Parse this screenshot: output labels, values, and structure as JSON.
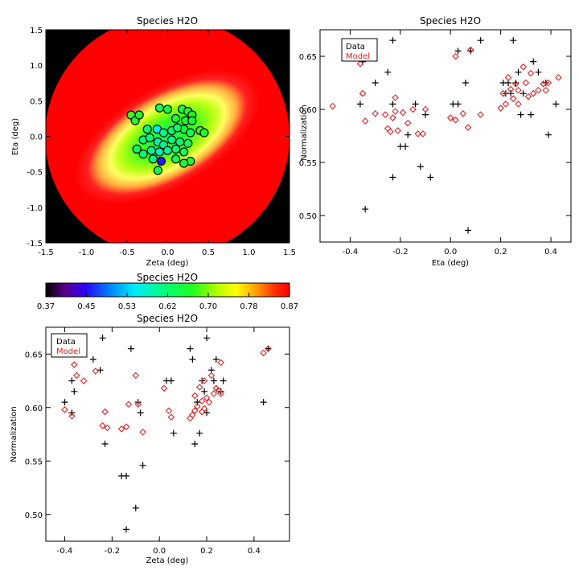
{
  "colors": {
    "data_marker": "#000000",
    "model_marker": "#dd2222",
    "background_outside_map": "#000000"
  },
  "chart_data": [
    {
      "type": "heatmap",
      "title": "Species H2O",
      "xlabel": "Zeta (deg)",
      "ylabel": "Eta (deg)",
      "xlim": [
        -1.5,
        1.5
      ],
      "ylim": [
        -1.5,
        1.5
      ],
      "xticks": [
        "-1.5",
        "-1.0",
        "-0.5",
        "0.0",
        "0.5",
        "1.0",
        "1.5"
      ],
      "yticks": [
        "-1.5",
        "-1.0",
        "-0.5",
        "0.0",
        "0.5",
        "1.0",
        "1.5"
      ],
      "map_value_range": [
        0.37,
        0.87
      ],
      "points": [
        {
          "zeta": -0.45,
          "eta": 0.3,
          "value": 0.68
        },
        {
          "zeta": -0.4,
          "eta": 0.22,
          "value": 0.66
        },
        {
          "zeta": -0.35,
          "eta": 0.3,
          "value": 0.67
        },
        {
          "zeta": -0.25,
          "eta": 0.1,
          "value": 0.62
        },
        {
          "zeta": -0.1,
          "eta": 0.4,
          "value": 0.64
        },
        {
          "zeta": 0.0,
          "eta": 0.38,
          "value": 0.65
        },
        {
          "zeta": 0.1,
          "eta": 0.25,
          "value": 0.66
        },
        {
          "zeta": 0.18,
          "eta": 0.38,
          "value": 0.65
        },
        {
          "zeta": 0.25,
          "eta": 0.35,
          "value": 0.66
        },
        {
          "zeta": 0.3,
          "eta": 0.3,
          "value": 0.67
        },
        {
          "zeta": 0.22,
          "eta": 0.22,
          "value": 0.66
        },
        {
          "zeta": 0.3,
          "eta": 0.22,
          "value": 0.66
        },
        {
          "zeta": 0.2,
          "eta": 0.1,
          "value": 0.65
        },
        {
          "zeta": 0.28,
          "eta": 0.05,
          "value": 0.64
        },
        {
          "zeta": -0.13,
          "eta": 0.1,
          "value": 0.55
        },
        {
          "zeta": -0.05,
          "eta": 0.05,
          "value": 0.61
        },
        {
          "zeta": 0.05,
          "eta": 0.08,
          "value": 0.62
        },
        {
          "zeta": 0.12,
          "eta": 0.12,
          "value": 0.63
        },
        {
          "zeta": 0.4,
          "eta": 0.08,
          "value": 0.68
        },
        {
          "zeta": 0.45,
          "eta": 0.05,
          "value": 0.67
        },
        {
          "zeta": -0.3,
          "eta": -0.05,
          "value": 0.62
        },
        {
          "zeta": -0.22,
          "eta": -0.02,
          "value": 0.61
        },
        {
          "zeta": -0.12,
          "eta": -0.08,
          "value": 0.59
        },
        {
          "zeta": -0.05,
          "eta": -0.12,
          "value": 0.6
        },
        {
          "zeta": 0.05,
          "eta": -0.05,
          "value": 0.61
        },
        {
          "zeta": 0.15,
          "eta": -0.08,
          "value": 0.62
        },
        {
          "zeta": 0.25,
          "eta": -0.1,
          "value": 0.64
        },
        {
          "zeta": -0.38,
          "eta": -0.18,
          "value": 0.63
        },
        {
          "zeta": -0.3,
          "eta": -0.25,
          "value": 0.62
        },
        {
          "zeta": -0.2,
          "eta": -0.2,
          "value": 0.6
        },
        {
          "zeta": -0.1,
          "eta": -0.22,
          "value": 0.58
        },
        {
          "zeta": 0.0,
          "eta": -0.2,
          "value": 0.6
        },
        {
          "zeta": 0.1,
          "eta": -0.18,
          "value": 0.62
        },
        {
          "zeta": 0.2,
          "eta": -0.22,
          "value": 0.63
        },
        {
          "zeta": -0.18,
          "eta": -0.32,
          "value": 0.61
        },
        {
          "zeta": -0.08,
          "eta": -0.35,
          "value": 0.46
        },
        {
          "zeta": 0.1,
          "eta": -0.32,
          "value": 0.64
        },
        {
          "zeta": 0.28,
          "eta": -0.35,
          "value": 0.66
        },
        {
          "zeta": -0.12,
          "eta": -0.48,
          "value": 0.64
        },
        {
          "zeta": 0.2,
          "eta": -0.38,
          "value": 0.65
        }
      ]
    },
    {
      "type": "scatter",
      "title": "Species H2O",
      "xlabel": "Eta (deg)",
      "ylabel": "Normalization",
      "xlim": [
        -0.52,
        0.48
      ],
      "ylim": [
        0.475,
        0.675
      ],
      "xticks": [
        -0.4,
        -0.2,
        0.0,
        0.2,
        0.4
      ],
      "xtick_labels": [
        "-0.4",
        "-0.2",
        "0.0",
        "0.2",
        "0.4"
      ],
      "yticks": [
        0.5,
        0.55,
        0.6,
        0.65
      ],
      "ytick_labels": [
        "0.50",
        "0.55",
        "0.60",
        "0.65"
      ],
      "legend": {
        "entries": [
          "Data",
          "Model"
        ],
        "placement": "top-left"
      },
      "series": [
        {
          "name": "Data",
          "marker": "plus",
          "points": [
            [
              -0.35,
              0.645
            ],
            [
              -0.36,
              0.605
            ],
            [
              -0.34,
              0.506
            ],
            [
              -0.3,
              0.625
            ],
            [
              -0.25,
              0.635
            ],
            [
              -0.23,
              0.665
            ],
            [
              -0.23,
              0.605
            ],
            [
              -0.23,
              0.536
            ],
            [
              -0.2,
              0.565
            ],
            [
              -0.18,
              0.565
            ],
            [
              -0.17,
              0.576
            ],
            [
              -0.14,
              0.605
            ],
            [
              -0.12,
              0.546
            ],
            [
              -0.1,
              0.595
            ],
            [
              -0.08,
              0.536
            ],
            [
              0.01,
              0.605
            ],
            [
              0.03,
              0.605
            ],
            [
              0.03,
              0.655
            ],
            [
              0.06,
              0.625
            ],
            [
              0.07,
              0.486
            ],
            [
              0.08,
              0.655
            ],
            [
              0.12,
              0.665
            ],
            [
              0.21,
              0.625
            ],
            [
              0.22,
              0.615
            ],
            [
              0.23,
              0.625
            ],
            [
              0.24,
              0.615
            ],
            [
              0.25,
              0.665
            ],
            [
              0.26,
              0.625
            ],
            [
              0.27,
              0.635
            ],
            [
              0.28,
              0.595
            ],
            [
              0.29,
              0.615
            ],
            [
              0.32,
              0.595
            ],
            [
              0.33,
              0.645
            ],
            [
              0.35,
              0.635
            ],
            [
              0.38,
              0.625
            ],
            [
              0.39,
              0.576
            ],
            [
              0.42,
              0.605
            ]
          ]
        },
        {
          "name": "Model",
          "marker": "diamond",
          "points": [
            [
              -0.47,
              0.603
            ],
            [
              -0.36,
              0.643
            ],
            [
              -0.35,
              0.615
            ],
            [
              -0.34,
              0.589
            ],
            [
              -0.3,
              0.596
            ],
            [
              -0.26,
              0.595
            ],
            [
              -0.25,
              0.582
            ],
            [
              -0.24,
              0.579
            ],
            [
              -0.23,
              0.592
            ],
            [
              -0.22,
              0.611
            ],
            [
              -0.22,
              0.598
            ],
            [
              -0.21,
              0.58
            ],
            [
              -0.19,
              0.597
            ],
            [
              -0.17,
              0.587
            ],
            [
              -0.15,
              0.6
            ],
            [
              -0.13,
              0.577
            ],
            [
              -0.11,
              0.577
            ],
            [
              -0.1,
              0.6
            ],
            [
              0.0,
              0.592
            ],
            [
              0.02,
              0.59
            ],
            [
              0.02,
              0.65
            ],
            [
              0.05,
              0.596
            ],
            [
              0.07,
              0.583
            ],
            [
              0.08,
              0.656
            ],
            [
              0.12,
              0.595
            ],
            [
              0.2,
              0.601
            ],
            [
              0.21,
              0.615
            ],
            [
              0.22,
              0.605
            ],
            [
              0.23,
              0.63
            ],
            [
              0.24,
              0.619
            ],
            [
              0.25,
              0.61
            ],
            [
              0.26,
              0.624
            ],
            [
              0.27,
              0.618
            ],
            [
              0.27,
              0.605
            ],
            [
              0.29,
              0.64
            ],
            [
              0.3,
              0.625
            ],
            [
              0.31,
              0.612
            ],
            [
              0.32,
              0.634
            ],
            [
              0.33,
              0.615
            ],
            [
              0.35,
              0.618
            ],
            [
              0.37,
              0.624
            ],
            [
              0.38,
              0.618
            ],
            [
              0.39,
              0.625
            ],
            [
              0.43,
              0.63
            ]
          ]
        }
      ]
    },
    {
      "type": "heatmap",
      "title": "Species H2O",
      "role": "colorbar",
      "colormap": "rainbow",
      "range": [
        0.37,
        0.87
      ],
      "tick_labels": [
        "0.37",
        "0.45",
        "0.53",
        "0.62",
        "0.70",
        "0.78",
        "0.87"
      ]
    },
    {
      "type": "scatter",
      "title": "Species H2O",
      "xlabel": "Zeta (deg)",
      "ylabel": "Normalization",
      "xlim": [
        -0.48,
        0.55
      ],
      "ylim": [
        0.475,
        0.675
      ],
      "xticks": [
        -0.4,
        -0.2,
        0.0,
        0.2,
        0.4
      ],
      "xtick_labels": [
        "-0.4",
        "-0.2",
        "0.0",
        "0.2",
        "0.4"
      ],
      "yticks": [
        0.5,
        0.55,
        0.6,
        0.65
      ],
      "ytick_labels": [
        "0.50",
        "0.55",
        "0.60",
        "0.65"
      ],
      "legend": {
        "entries": [
          "Data",
          "Model"
        ],
        "placement": "top-left"
      },
      "series": [
        {
          "name": "Data",
          "marker": "plus",
          "points": [
            [
              -0.4,
              0.605
            ],
            [
              -0.37,
              0.625
            ],
            [
              -0.37,
              0.595
            ],
            [
              -0.36,
              0.615
            ],
            [
              -0.33,
              0.665
            ],
            [
              -0.28,
              0.645
            ],
            [
              -0.25,
              0.635
            ],
            [
              -0.24,
              0.665
            ],
            [
              -0.23,
              0.566
            ],
            [
              -0.16,
              0.536
            ],
            [
              -0.14,
              0.536
            ],
            [
              -0.14,
              0.486
            ],
            [
              -0.12,
              0.655
            ],
            [
              -0.1,
              0.506
            ],
            [
              -0.09,
              0.605
            ],
            [
              -0.08,
              0.595
            ],
            [
              -0.07,
              0.546
            ],
            [
              0.03,
              0.625
            ],
            [
              0.05,
              0.625
            ],
            [
              0.06,
              0.576
            ],
            [
              0.13,
              0.655
            ],
            [
              0.14,
              0.645
            ],
            [
              0.15,
              0.566
            ],
            [
              0.16,
              0.605
            ],
            [
              0.17,
              0.576
            ],
            [
              0.18,
              0.625
            ],
            [
              0.19,
              0.615
            ],
            [
              0.2,
              0.665
            ],
            [
              0.2,
              0.595
            ],
            [
              0.22,
              0.635
            ],
            [
              0.23,
              0.625
            ],
            [
              0.24,
              0.645
            ],
            [
              0.26,
              0.615
            ],
            [
              0.27,
              0.625
            ],
            [
              0.44,
              0.605
            ],
            [
              0.46,
              0.655
            ]
          ]
        },
        {
          "name": "Model",
          "marker": "diamond",
          "points": [
            [
              -0.4,
              0.598
            ],
            [
              -0.37,
              0.592
            ],
            [
              -0.36,
              0.64
            ],
            [
              -0.35,
              0.63
            ],
            [
              -0.32,
              0.625
            ],
            [
              -0.27,
              0.634
            ],
            [
              -0.24,
              0.583
            ],
            [
              -0.23,
              0.596
            ],
            [
              -0.22,
              0.581
            ],
            [
              -0.16,
              0.58
            ],
            [
              -0.14,
              0.582
            ],
            [
              -0.13,
              0.603
            ],
            [
              -0.1,
              0.63
            ],
            [
              -0.09,
              0.603
            ],
            [
              -0.07,
              0.577
            ],
            [
              0.02,
              0.618
            ],
            [
              0.04,
              0.597
            ],
            [
              0.05,
              0.591
            ],
            [
              0.13,
              0.59
            ],
            [
              0.14,
              0.593
            ],
            [
              0.15,
              0.597
            ],
            [
              0.15,
              0.611
            ],
            [
              0.16,
              0.601
            ],
            [
              0.17,
              0.619
            ],
            [
              0.18,
              0.606
            ],
            [
              0.18,
              0.596
            ],
            [
              0.19,
              0.599
            ],
            [
              0.19,
              0.625
            ],
            [
              0.2,
              0.609
            ],
            [
              0.21,
              0.605
            ],
            [
              0.22,
              0.63
            ],
            [
              0.23,
              0.613
            ],
            [
              0.24,
              0.618
            ],
            [
              0.25,
              0.616
            ],
            [
              0.26,
              0.613
            ],
            [
              0.26,
              0.642
            ],
            [
              0.44,
              0.651
            ],
            [
              0.46,
              0.655
            ]
          ]
        }
      ]
    }
  ]
}
